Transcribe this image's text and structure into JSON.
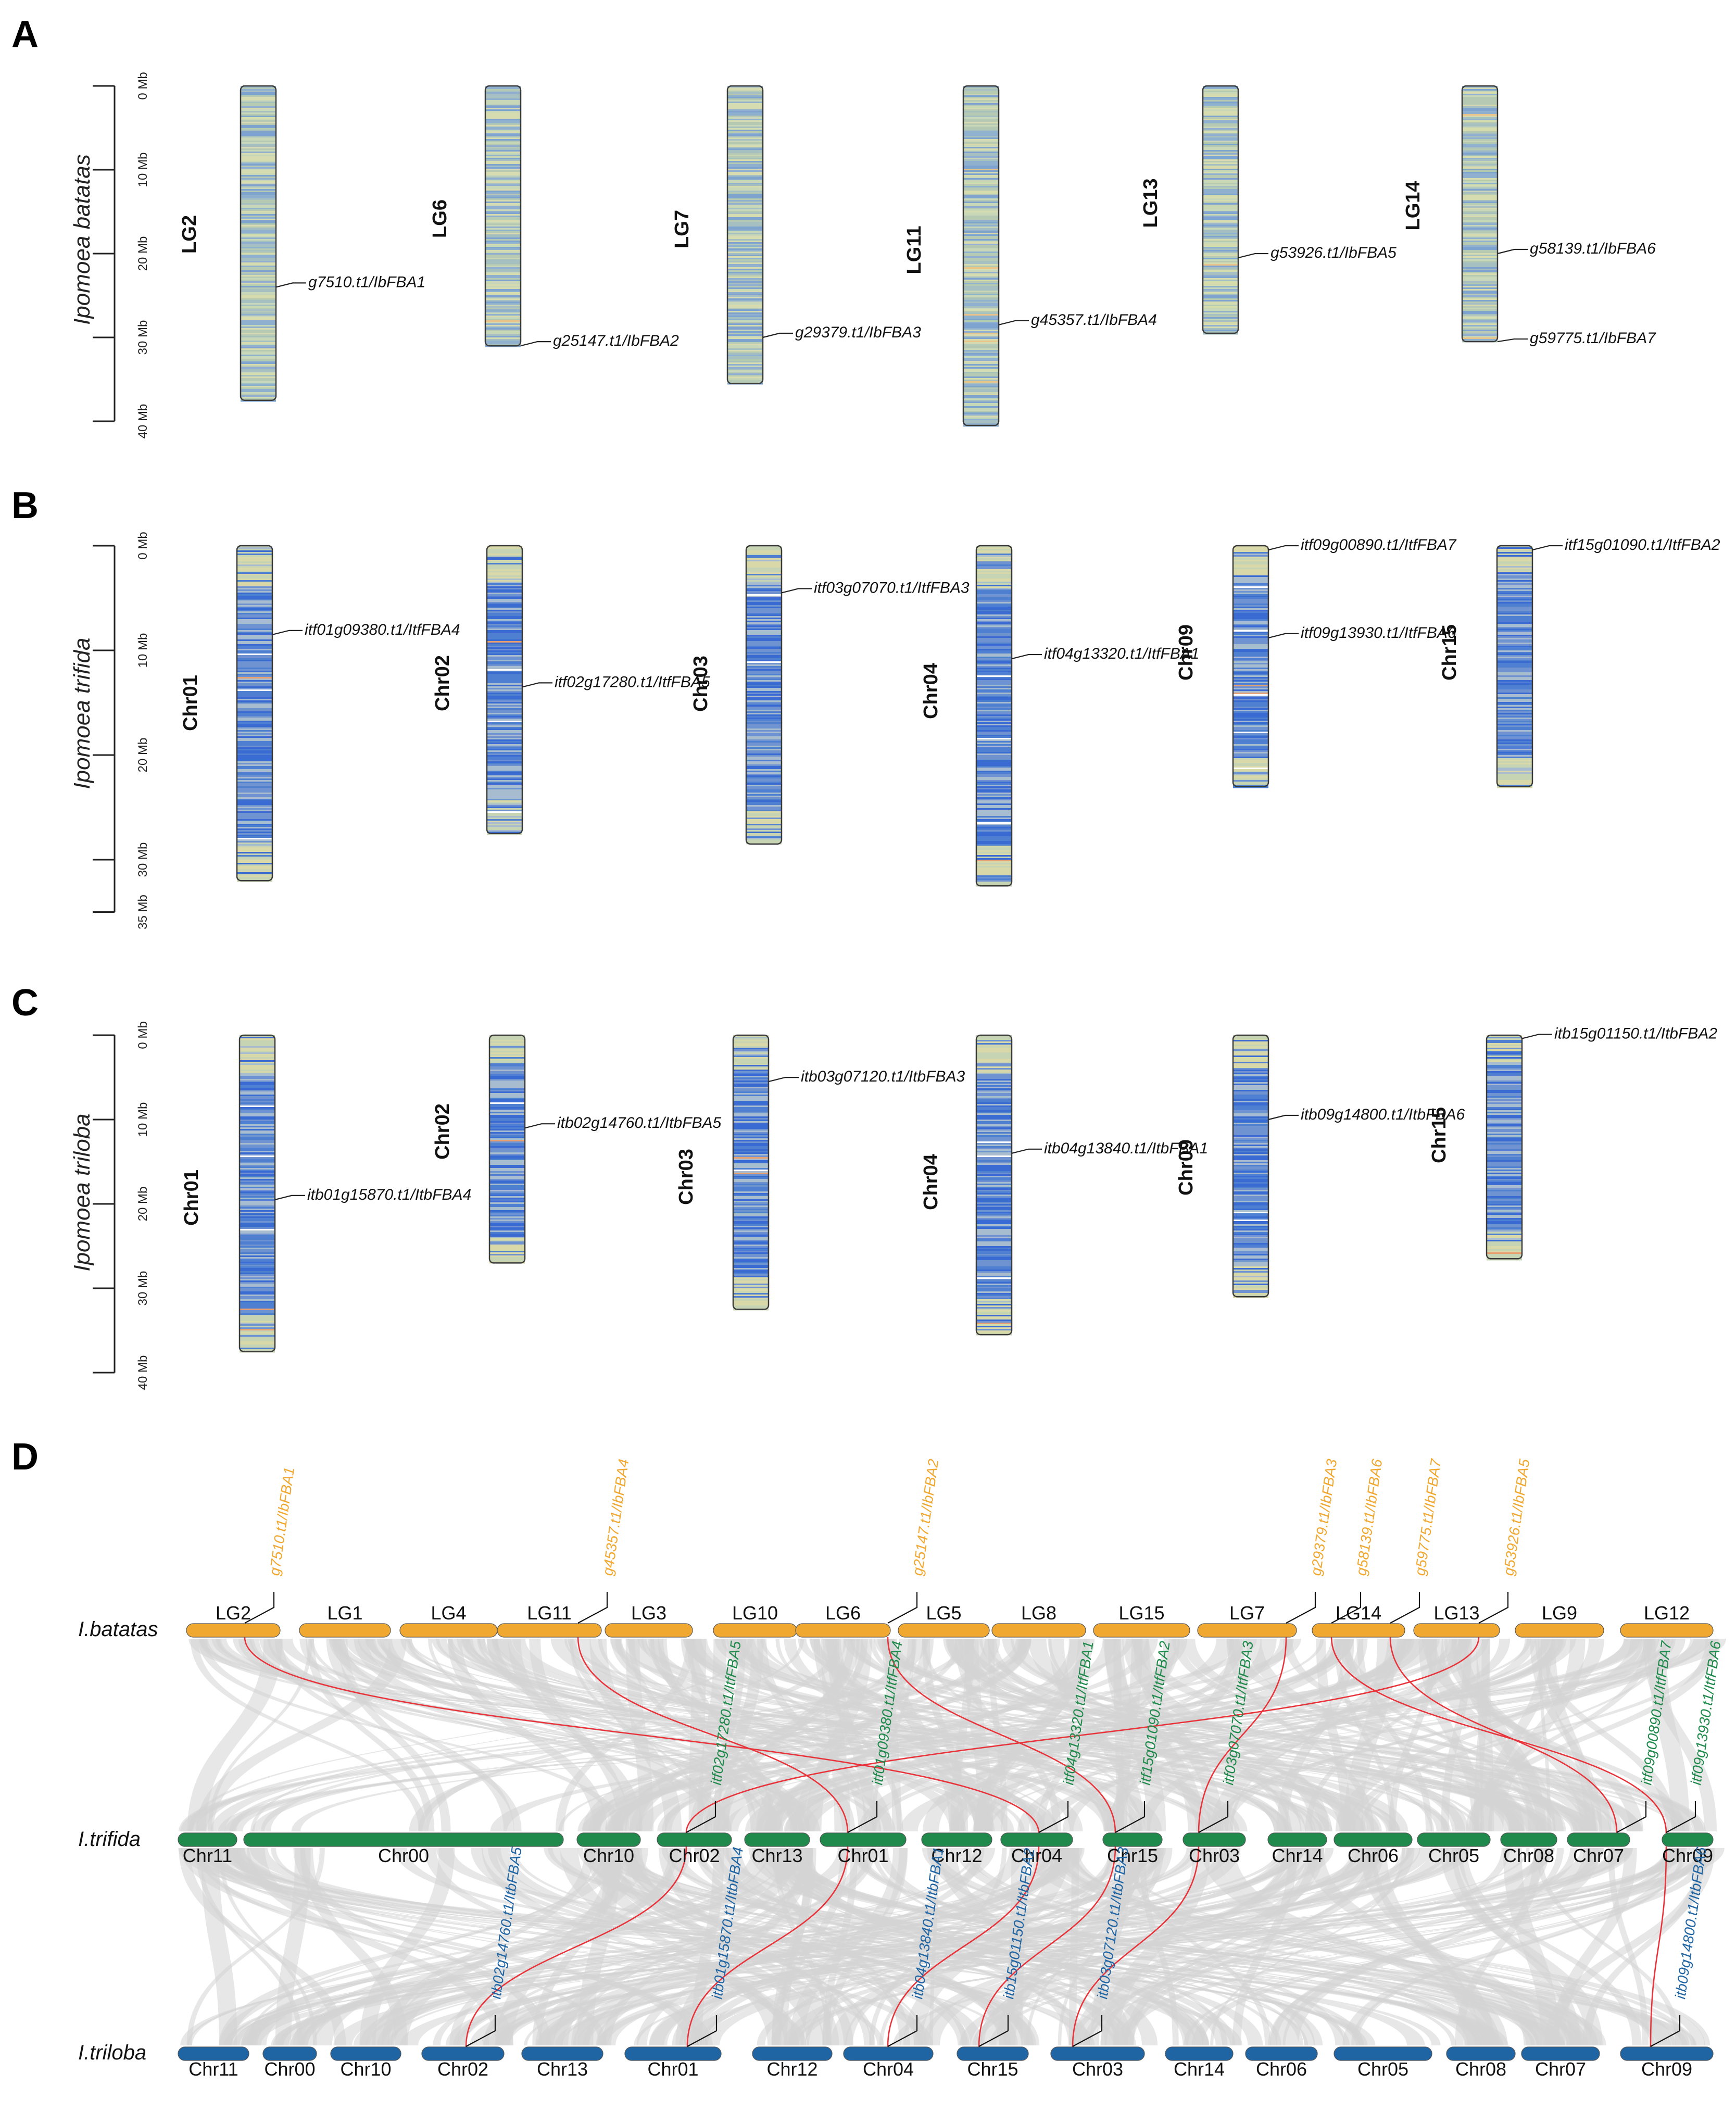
{
  "figure_colors": {
    "batatas": "#f0a830",
    "trifida": "#1f8a4c",
    "triloba": "#1f64a3",
    "link": "#e8333a",
    "syntenic": "#d4d4d4"
  },
  "panels": {
    "A": {
      "letter": "A",
      "species": "Ipomoea batatas",
      "axis": {
        "max_mb": 40,
        "ticks": [
          "0 Mb",
          "10 Mb",
          "20 Mb",
          "30 Mb",
          "40 Mb"
        ]
      },
      "chromosomes": [
        {
          "name": "LG2",
          "length_mb": 37.5,
          "genes": [
            {
              "label": "g7510.t1/IbFBA1",
              "pos_mb": 24.0
            }
          ]
        },
        {
          "name": "LG6",
          "length_mb": 31.0,
          "genes": [
            {
              "label": "g25147.t1/IbFBA2",
              "pos_mb": 31.0
            }
          ]
        },
        {
          "name": "LG7",
          "length_mb": 35.5,
          "genes": [
            {
              "label": "g29379.t1/IbFBA3",
              "pos_mb": 30.0
            }
          ]
        },
        {
          "name": "LG11",
          "length_mb": 40.5,
          "genes": [
            {
              "label": "g45357.t1/IbFBA4",
              "pos_mb": 28.5
            }
          ]
        },
        {
          "name": "LG13",
          "length_mb": 29.5,
          "genes": [
            {
              "label": "g53926.t1/IbFBA5",
              "pos_mb": 20.5
            }
          ]
        },
        {
          "name": "LG14",
          "length_mb": 30.5,
          "genes": [
            {
              "label": "g58139.t1/IbFBA6",
              "pos_mb": 20.0
            },
            {
              "label": "g59775.t1/IbFBA7",
              "pos_mb": 30.5
            }
          ]
        }
      ]
    },
    "B": {
      "letter": "B",
      "species": "Ipomoea trifida",
      "axis": {
        "max_mb": 35,
        "ticks": [
          "0 Mb",
          "10 Mb",
          "20 Mb",
          "30 Mb",
          "35 Mb"
        ]
      },
      "chromosomes": [
        {
          "name": "Chr01",
          "length_mb": 32.0,
          "genes": [
            {
              "label": "itf01g09380.t1/ItfFBA4",
              "pos_mb": 8.5
            }
          ]
        },
        {
          "name": "Chr02",
          "length_mb": 27.5,
          "genes": [
            {
              "label": "itf02g17280.t1/ItfFBA5",
              "pos_mb": 13.5
            }
          ]
        },
        {
          "name": "Chr03",
          "length_mb": 28.5,
          "genes": [
            {
              "label": "itf03g07070.t1/ItfFBA3",
              "pos_mb": 4.5
            }
          ]
        },
        {
          "name": "Chr04",
          "length_mb": 32.5,
          "genes": [
            {
              "label": "itf04g13320.t1/ItfFBA1",
              "pos_mb": 10.8
            }
          ]
        },
        {
          "name": "Chr09",
          "length_mb": 23.0,
          "genes": [
            {
              "label": "itf09g00890.t1/ItfFBA7",
              "pos_mb": 0.4
            },
            {
              "label": "itf09g13930.t1/ItfFBA6",
              "pos_mb": 8.8
            }
          ]
        },
        {
          "name": "Chr15",
          "length_mb": 23.0,
          "genes": [
            {
              "label": "itf15g01090.t1/ItfFBA2",
              "pos_mb": 0.4
            }
          ]
        }
      ]
    },
    "C": {
      "letter": "C",
      "species": "Ipomoea triloba",
      "axis": {
        "max_mb": 40,
        "ticks": [
          "0 Mb",
          "10 Mb",
          "20 Mb",
          "30 Mb",
          "40 Mb"
        ]
      },
      "chromosomes": [
        {
          "name": "Chr01",
          "length_mb": 37.5,
          "genes": [
            {
              "label": "itb01g15870.t1/ItbFBA4",
              "pos_mb": 19.5
            }
          ]
        },
        {
          "name": "Chr02",
          "length_mb": 27.0,
          "genes": [
            {
              "label": "itb02g14760.t1/ItbFBA5",
              "pos_mb": 11.0
            }
          ]
        },
        {
          "name": "Chr03",
          "length_mb": 32.5,
          "genes": [
            {
              "label": "itb03g07120.t1/ItbFBA3",
              "pos_mb": 5.5
            }
          ]
        },
        {
          "name": "Chr04",
          "length_mb": 35.5,
          "genes": [
            {
              "label": "itb04g13840.t1/ItbFBA1",
              "pos_mb": 14.0
            }
          ]
        },
        {
          "name": "Chr09",
          "length_mb": 31.0,
          "genes": [
            {
              "label": "itb09g14800.t1/ItbFBA6",
              "pos_mb": 10.0
            }
          ]
        },
        {
          "name": "Chr15",
          "length_mb": 26.5,
          "genes": [
            {
              "label": "itb15g01150.t1/ItbFBA2",
              "pos_mb": 0.4
            }
          ]
        }
      ]
    },
    "D": {
      "letter": "D",
      "tracks": [
        {
          "species": "I.batatas",
          "chromosomes": [
            "LG2",
            "LG1",
            "LG4",
            "LG11",
            "LG3",
            "LG10",
            "LG6",
            "LG5",
            "LG8",
            "LG15",
            "LG7",
            "LG14",
            "LG13",
            "LG9",
            "LG12"
          ],
          "genes": [
            "g7510.t1/IbFBA1",
            "g45357.t1/IbFBA4",
            "g25147.t1/IbFBA2",
            "g29379.t1/IbFBA3",
            "g58139.t1/IbFBA6",
            "g59775.t1/IbFBA7",
            "g53926.t1/IbFBA5"
          ]
        },
        {
          "species": "I.trifida",
          "chromosomes": [
            "Chr11",
            "Chr00",
            "Chr10",
            "Chr02",
            "Chr13",
            "Chr01",
            "Chr12",
            "Chr04",
            "Chr15",
            "Chr03",
            "Chr14",
            "Chr06",
            "Chr05",
            "Chr08",
            "Chr07",
            "Chr09"
          ],
          "genes": [
            "itf02g17280.t1/ItfFBA5",
            "itf01g09380.t1/ItfFBA4",
            "itf04g13320.t1/ItfFBA1",
            "itf15g01090.t1/ItfFBA2",
            "itf03g07070.t1/ItfFBA3",
            "itf09g00890.t1/ItfFBA7",
            "itf09g13930.t1/ItfFBA6"
          ]
        },
        {
          "species": "I.triloba",
          "chromosomes": [
            "Chr11",
            "Chr00",
            "Chr10",
            "Chr02",
            "Chr13",
            "Chr01",
            "Chr12",
            "Chr04",
            "Chr15",
            "Chr03",
            "Chr14",
            "Chr06",
            "Chr05",
            "Chr08",
            "Chr07",
            "Chr09"
          ],
          "genes": [
            "itb02g14760.t1/ItbFBA5",
            "itb01g15870.t1/ItbFBA4",
            "itb04g13840.t1/ItbFBA1",
            "itb15g01150.t1/ItbFBA2",
            "itb03g07120.t1/ItbFBA3",
            "itb09g14800.t1/ItbFBA6"
          ]
        }
      ]
    }
  }
}
